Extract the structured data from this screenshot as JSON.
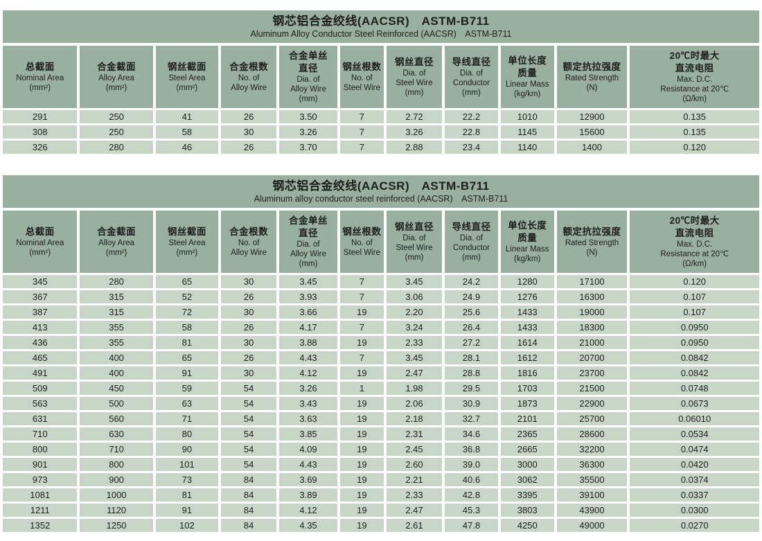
{
  "colors": {
    "header_band": "#99af9f",
    "data_cell": "#c8d6c8",
    "text": "#1d1d1d",
    "background": "#ffffff"
  },
  "columns": [
    {
      "cn": [
        "总截面"
      ],
      "en": [
        "Nominal Area",
        "(mm²)"
      ]
    },
    {
      "cn": [
        "合金截面"
      ],
      "en": [
        "Alloy Area",
        "(mm²)"
      ]
    },
    {
      "cn": [
        "钢丝截面"
      ],
      "en": [
        "Steel Area",
        "(mm²)"
      ]
    },
    {
      "cn": [
        "合金根数"
      ],
      "en": [
        "No. of",
        "Alloy Wire"
      ]
    },
    {
      "cn": [
        "合金单丝",
        "直径"
      ],
      "en": [
        "Dia. of",
        "Alloy Wire",
        "(mm)"
      ]
    },
    {
      "cn": [
        "钢丝根数"
      ],
      "en": [
        "No. of",
        "Steel Wire"
      ]
    },
    {
      "cn": [
        "钢丝直径"
      ],
      "en": [
        "Dia. of",
        "Steel Wire",
        "(mm)"
      ]
    },
    {
      "cn": [
        "导线直径"
      ],
      "en": [
        "Dia. of",
        "Conductor",
        "(mm)"
      ]
    },
    {
      "cn": [
        "单位长度",
        "质量"
      ],
      "en": [
        "Linear Mass",
        "(kg/km)"
      ]
    },
    {
      "cn": [
        "额定抗拉强度"
      ],
      "en": [
        "Rated Strength",
        "(N)"
      ]
    },
    {
      "cn": [
        "20℃时最大",
        "直流电阻"
      ],
      "en": [
        "Max. D.C.",
        "Resistance at 20℃",
        "(Ω/km)"
      ]
    }
  ],
  "tables": [
    {
      "title_cn": "钢芯铝合金绞线(AACSR)　ASTM-B711",
      "title_en": "Aluminum Alloy Conductor Steel Reinforced (AACSR)　ASTM-B711",
      "rows": [
        [
          "291",
          "250",
          "41",
          "26",
          "3.50",
          "7",
          "2.72",
          "22.2",
          "1010",
          "12900",
          "0.135"
        ],
        [
          "308",
          "250",
          "58",
          "30",
          "3.26",
          "7",
          "3.26",
          "22.8",
          "1145",
          "15600",
          "0.135"
        ],
        [
          "326",
          "280",
          "46",
          "26",
          "3.70",
          "7",
          "2.88",
          "23.4",
          "1140",
          "1400",
          "0.120"
        ]
      ]
    },
    {
      "title_cn": "钢芯铝合金绞线(AACSR)　ASTM-B711",
      "title_en": "Aluminum alloy conductor steel reinforced (AACSR)　ASTM-B711",
      "rows": [
        [
          "345",
          "280",
          "65",
          "30",
          "3.45",
          "7",
          "3.45",
          "24.2",
          "1280",
          "17100",
          "0.120"
        ],
        [
          "367",
          "315",
          "52",
          "26",
          "3.93",
          "7",
          "3.06",
          "24.9",
          "1276",
          "16300",
          "0.107"
        ],
        [
          "387",
          "315",
          "72",
          "30",
          "3.66",
          "19",
          "2.20",
          "25.6",
          "1433",
          "19000",
          "0.107"
        ],
        [
          "413",
          "355",
          "58",
          "26",
          "4.17",
          "7",
          "3.24",
          "26.4",
          "1433",
          "18300",
          "0.0950"
        ],
        [
          "436",
          "355",
          "81",
          "30",
          "3.88",
          "19",
          "2.33",
          "27.2",
          "1614",
          "21000",
          "0.0950"
        ],
        [
          "465",
          "400",
          "65",
          "26",
          "4.43",
          "7",
          "3.45",
          "28.1",
          "1612",
          "20700",
          "0.0842"
        ],
        [
          "491",
          "400",
          "91",
          "30",
          "4.12",
          "19",
          "2.47",
          "28.8",
          "1816",
          "23700",
          "0.0842"
        ],
        [
          "509",
          "450",
          "59",
          "54",
          "3.26",
          "1",
          "1.98",
          "29.5",
          "1703",
          "21500",
          "0.0748"
        ],
        [
          "563",
          "500",
          "63",
          "54",
          "3.43",
          "19",
          "2.06",
          "30.9",
          "1873",
          "22900",
          "0.0673"
        ],
        [
          "631",
          "560",
          "71",
          "54",
          "3.63",
          "19",
          "2.18",
          "32.7",
          "2101",
          "25700",
          "0.06010"
        ],
        [
          "710",
          "630",
          "80",
          "54",
          "3.85",
          "19",
          "2.31",
          "34.6",
          "2365",
          "28600",
          "0.0534"
        ],
        [
          "800",
          "710",
          "90",
          "54",
          "4.09",
          "19",
          "2.45",
          "36.8",
          "2665",
          "32200",
          "0.0474"
        ],
        [
          "901",
          "800",
          "101",
          "54",
          "4.43",
          "19",
          "2.60",
          "39.0",
          "3000",
          "36300",
          "0.0420"
        ],
        [
          "973",
          "900",
          "73",
          "84",
          "3.69",
          "19",
          "2.21",
          "40.6",
          "3062",
          "35500",
          "0.0374"
        ],
        [
          "1081",
          "1000",
          "81",
          "84",
          "3.89",
          "19",
          "2.33",
          "42.8",
          "3395",
          "39100",
          "0.0337"
        ],
        [
          "1211",
          "1120",
          "91",
          "84",
          "4.12",
          "19",
          "2.47",
          "45.3",
          "3803",
          "43900",
          "0.0300"
        ],
        [
          "1352",
          "1250",
          "102",
          "84",
          "4.35",
          "19",
          "2.61",
          "47.8",
          "4250",
          "49000",
          "0.0270"
        ]
      ]
    }
  ]
}
